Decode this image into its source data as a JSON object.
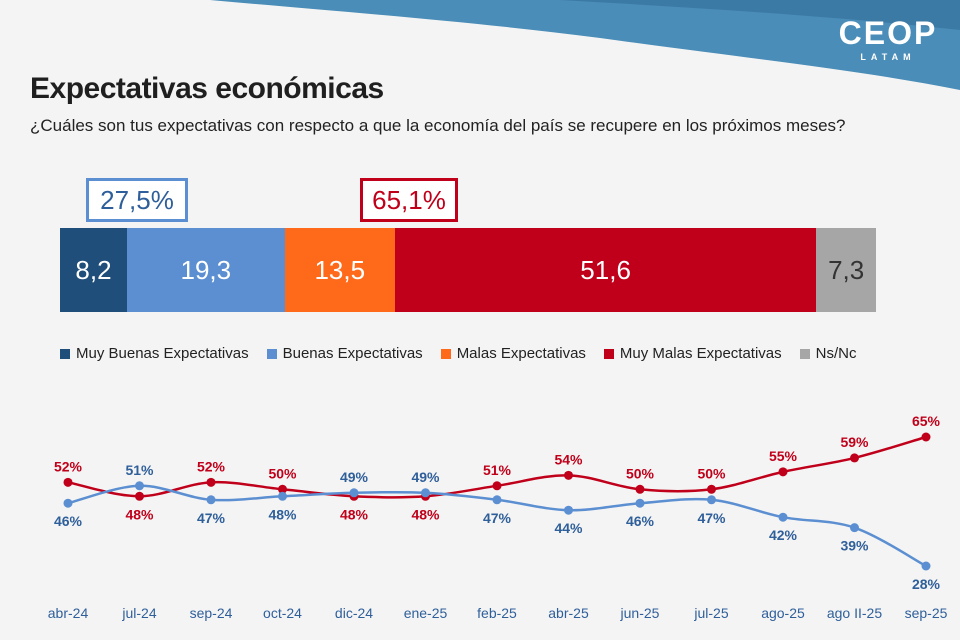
{
  "header": {
    "logo_main": "CEOP",
    "logo_sub": "LATAM",
    "title": "Expectativas económicas",
    "subtitle": "¿Cuáles son tus expectativas con respecto a que la economía del país se recupere en los próximos meses?"
  },
  "callouts": {
    "positive": "27,5%",
    "negative": "65,1%"
  },
  "colors": {
    "band": "#4a8db8",
    "very_good": "#1f4e7a",
    "good": "#5b8fd1",
    "bad": "#ff6a1a",
    "very_bad": "#c0001a",
    "nsnc": "#a6a6a6",
    "line_good": "#5b8fd1",
    "line_bad": "#c0001a"
  },
  "chart_data": [
    {
      "type": "bar",
      "stacked": true,
      "orientation": "horizontal",
      "series": [
        {
          "name": "Muy Buenas Expectativas",
          "value": 8.2,
          "label": "8,2",
          "color": "#1f4e7a"
        },
        {
          "name": "Buenas Expectativas",
          "value": 19.3,
          "label": "19,3",
          "color": "#5b8fd1"
        },
        {
          "name": "Malas Expectativas",
          "value": 13.5,
          "label": "13,5",
          "color": "#ff6a1a"
        },
        {
          "name": "Muy Malas Expectativas",
          "value": 51.6,
          "label": "51,6",
          "color": "#c0001a"
        },
        {
          "name": "Ns/Nc",
          "value": 7.3,
          "label": "7,3",
          "color": "#a6a6a6"
        }
      ],
      "legend_position": "bottom"
    },
    {
      "type": "line",
      "categories": [
        "abr-24",
        "jul-24",
        "sep-24",
        "oct-24",
        "dic-24",
        "ene-25",
        "feb-25",
        "abr-25",
        "jun-25",
        "jul-25",
        "ago-25",
        "ago II-25",
        "sep-25"
      ],
      "series": [
        {
          "values": [
            52,
            48,
            52,
            50,
            48,
            48,
            51,
            54,
            50,
            50,
            55,
            59,
            65
          ],
          "color": "#c0001a"
        },
        {
          "values": [
            46,
            51,
            47,
            48,
            49,
            49,
            47,
            44,
            46,
            47,
            42,
            39,
            28
          ],
          "color": "#5b8fd1"
        }
      ],
      "value_suffix": "%",
      "grid": false
    }
  ]
}
